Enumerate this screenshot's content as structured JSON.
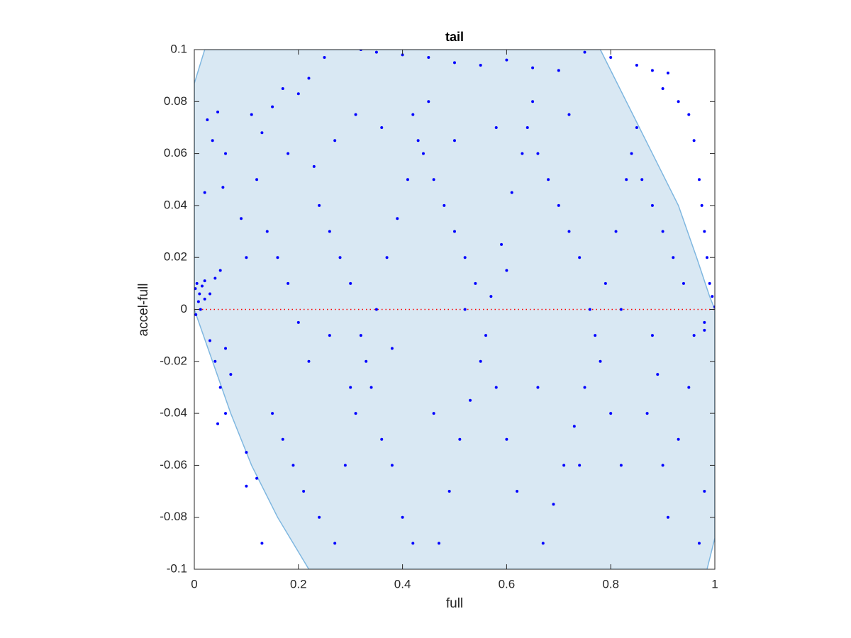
{
  "chart_data": {
    "type": "scatter",
    "title": "tail",
    "x_label": "full",
    "y_label": "accel-full",
    "xlim": [
      0,
      1
    ],
    "ylim": [
      -0.1,
      0.1
    ],
    "xticks": [
      0,
      0.2,
      0.4,
      0.6,
      0.8,
      1
    ],
    "yticks": [
      -0.1,
      -0.08,
      -0.06,
      -0.04,
      -0.02,
      0,
      0.02,
      0.04,
      0.06,
      0.08,
      0.1
    ],
    "color": "#0000ff",
    "region": {
      "color": "#d9e8f3",
      "edge_color": "#7fb7e0",
      "x": [
        0,
        0.02,
        0.78,
        0.83,
        0.88,
        0.93,
        0.965,
        0.99,
        1,
        1,
        0.985,
        0.22,
        0.16,
        0.11,
        0.07,
        0.035,
        0
      ],
      "y": [
        0.087,
        0.1,
        0.1,
        0.08,
        0.06,
        0.04,
        0.02,
        0.005,
        0,
        -0.088,
        -0.1,
        -0.1,
        -0.08,
        -0.06,
        -0.04,
        -0.02,
        0
      ]
    },
    "reference_line": {
      "y": 0,
      "color": "#ff0000"
    },
    "x": [
      0.002,
      0.005,
      0.01,
      0.015,
      0.02,
      0.008,
      0.012,
      0.003,
      0.02,
      0.03,
      0.04,
      0.05,
      0.03,
      0.04,
      0.05,
      0.06,
      0.045,
      0.06,
      0.07,
      0.055,
      0.06,
      0.035,
      0.025,
      0.045,
      0.02,
      0.1,
      0.13,
      0.1,
      0.12,
      0.09,
      0.1,
      0.11,
      0.13,
      0.15,
      0.17,
      0.2,
      0.22,
      0.25,
      0.32,
      0.35,
      0.4,
      0.45,
      0.5,
      0.55,
      0.6,
      0.65,
      0.7,
      0.75,
      0.8,
      0.85,
      0.88,
      0.91,
      0.9,
      0.93,
      0.95,
      0.96,
      0.97,
      0.975,
      0.98,
      0.985,
      0.99,
      0.995,
      1,
      0.98,
      0.98,
      0.14,
      0.16,
      0.18,
      0.2,
      0.22,
      0.24,
      0.26,
      0.28,
      0.3,
      0.32,
      0.34,
      0.36,
      0.38,
      0.4,
      0.42,
      0.44,
      0.46,
      0.48,
      0.5,
      0.52,
      0.54,
      0.56,
      0.58,
      0.6,
      0.62,
      0.64,
      0.66,
      0.68,
      0.7,
      0.72,
      0.74,
      0.76,
      0.78,
      0.8,
      0.82,
      0.84,
      0.86,
      0.88,
      0.9,
      0.92,
      0.94,
      0.96,
      0.95,
      0.93,
      0.91,
      0.15,
      0.17,
      0.19,
      0.21,
      0.24,
      0.27,
      0.29,
      0.31,
      0.33,
      0.35,
      0.37,
      0.39,
      0.41,
      0.43,
      0.45,
      0.47,
      0.49,
      0.51,
      0.53,
      0.55,
      0.57,
      0.59,
      0.61,
      0.63,
      0.65,
      0.67,
      0.69,
      0.71,
      0.73,
      0.75,
      0.77,
      0.79,
      0.81,
      0.83,
      0.85,
      0.87,
      0.89,
      0.9,
      0.97,
      0.98,
      0.12,
      0.18,
      0.23,
      0.27,
      0.31,
      0.36,
      0.42,
      0.5,
      0.58,
      0.72,
      0.26,
      0.3,
      0.38,
      0.46,
      0.52,
      0.6,
      0.66,
      0.74,
      0.82,
      0.88
    ],
    "values": [
      0.008,
      0.01,
      0.006,
      0.009,
      0.011,
      0.003,
      0,
      -0.002,
      0.004,
      0.006,
      0.012,
      0.015,
      -0.012,
      -0.02,
      -0.03,
      -0.04,
      -0.044,
      -0.015,
      -0.025,
      0.047,
      0.06,
      0.065,
      0.073,
      0.076,
      0.045,
      -0.068,
      -0.09,
      -0.055,
      -0.065,
      0.035,
      0.02,
      0.075,
      0.068,
      0.078,
      0.085,
      0.083,
      0.089,
      0.097,
      0.1,
      0.099,
      0.098,
      0.097,
      0.095,
      0.094,
      0.096,
      0.093,
      0.092,
      0.099,
      0.097,
      0.094,
      0.092,
      0.091,
      0.085,
      0.08,
      0.075,
      0.065,
      0.05,
      0.04,
      0.03,
      0.02,
      0.01,
      0.005,
      0.001,
      -0.005,
      -0.008,
      0.03,
      0.02,
      0.01,
      -0.005,
      -0.02,
      0.04,
      0.03,
      0.02,
      0.01,
      -0.01,
      -0.03,
      -0.05,
      -0.06,
      -0.08,
      -0.09,
      0.06,
      0.05,
      0.04,
      0.03,
      0.02,
      0.01,
      -0.01,
      -0.03,
      -0.05,
      -0.07,
      0.07,
      0.06,
      0.05,
      0.04,
      0.03,
      0.02,
      0,
      -0.02,
      -0.04,
      -0.06,
      0.06,
      0.05,
      0.04,
      0.03,
      0.02,
      0.01,
      -0.01,
      -0.03,
      -0.05,
      -0.08,
      -0.04,
      -0.05,
      -0.06,
      -0.07,
      -0.08,
      -0.09,
      -0.06,
      -0.04,
      -0.02,
      0,
      0.02,
      0.035,
      0.05,
      0.065,
      0.08,
      -0.09,
      -0.07,
      -0.05,
      -0.035,
      -0.02,
      0.005,
      0.025,
      0.045,
      0.06,
      0.08,
      -0.09,
      -0.075,
      -0.06,
      -0.045,
      -0.03,
      -0.01,
      0.01,
      0.03,
      0.05,
      0.07,
      -0.04,
      -0.025,
      -0.06,
      -0.09,
      -0.07,
      0.05,
      0.06,
      0.055,
      0.065,
      0.075,
      0.07,
      0.075,
      0.065,
      0.07,
      0.075,
      -0.01,
      -0.03,
      -0.015,
      -0.04,
      0,
      0.015,
      -0.03,
      -0.06,
      0,
      -0.01
    ]
  }
}
